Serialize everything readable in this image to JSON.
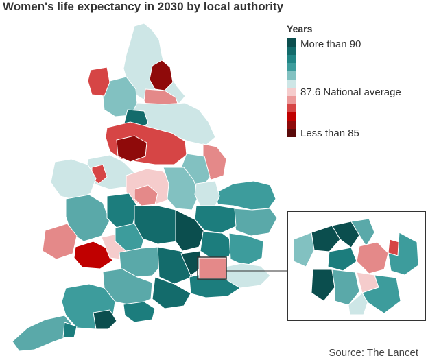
{
  "title": "Women's life expectancy in 2030 by local authority",
  "legend": {
    "heading": "Years",
    "top_label": "More than 90",
    "mid_label": "87.6 National average",
    "bottom_label": "Less than 85",
    "colors": [
      "#0b4e4e",
      "#136b6b",
      "#218585",
      "#3d9c9c",
      "#82c1c1",
      "#cde6e6",
      "#f5cccc",
      "#ec9a9a",
      "#d64545",
      "#c00000",
      "#8f0a0a",
      "#5a0a0a"
    ]
  },
  "source": "Source: The Lancet",
  "palette": {
    "very_high": "#0b4e4e",
    "high": "#1c7d7d",
    "above": "#5aa9a9",
    "slightly_above": "#cde6e6",
    "slightly_below": "#f5cccc",
    "below": "#e48989",
    "low": "#c00000",
    "very_low": "#6b0a0a",
    "border": "#ffffff"
  }
}
